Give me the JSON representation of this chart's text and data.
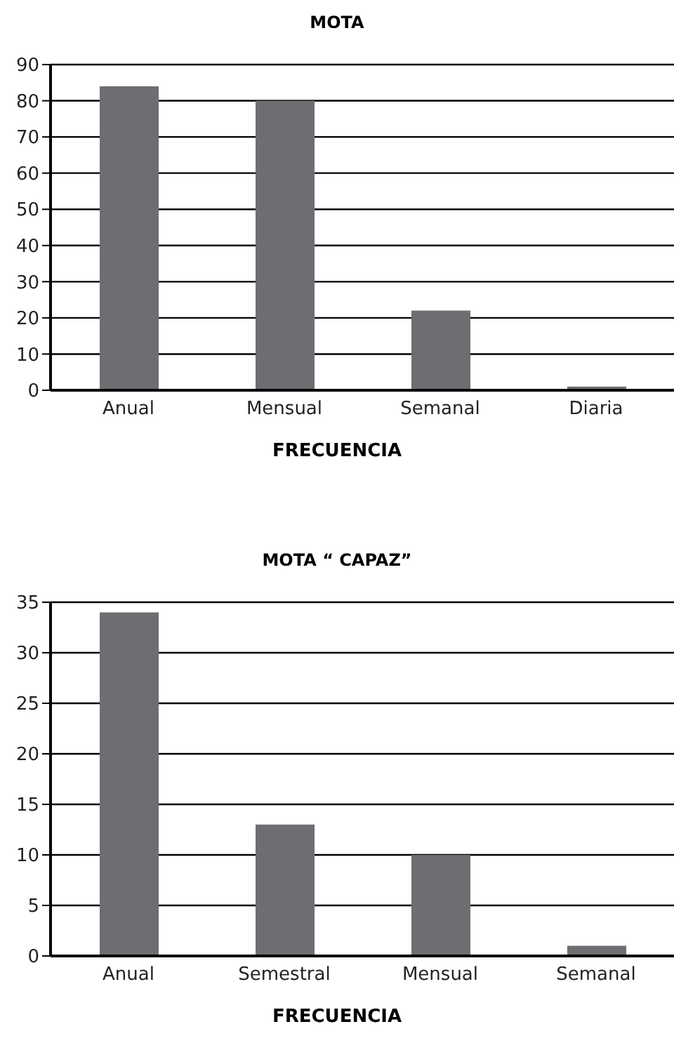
{
  "chart_data": [
    {
      "type": "bar",
      "title": "MOTA",
      "xlabel": "FRECUENCIA",
      "categories": [
        "Anual",
        "Mensual",
        "Semanal",
        "Diaria"
      ],
      "values": [
        84,
        80,
        22,
        1
      ],
      "color": "#6d6e71",
      "ylim": [
        0,
        90
      ],
      "yticks": [
        0,
        10,
        20,
        30,
        40,
        50,
        60,
        70,
        80,
        90
      ],
      "grid": "y"
    },
    {
      "type": "bar",
      "title": "MOTA “ CAPAZ”",
      "xlabel": "FRECUENCIA",
      "categories": [
        "Anual",
        "Semestral",
        "Mensual",
        "Semanal"
      ],
      "values": [
        34,
        13,
        10,
        1
      ],
      "color": "#6d6e71",
      "ylim": [
        0,
        35
      ],
      "yticks": [
        0,
        5,
        10,
        15,
        20,
        25,
        30,
        35
      ],
      "grid": "y"
    }
  ]
}
